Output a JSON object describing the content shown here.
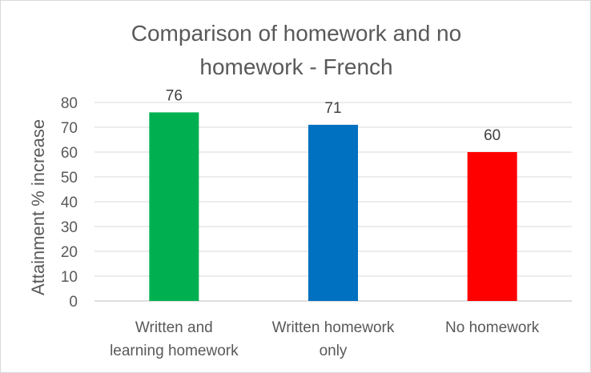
{
  "chart_data": {
    "type": "bar",
    "title": [
      "Comparison of homework and no",
      "homework - French"
    ],
    "xlabel": "",
    "ylabel": "Attainment % increase",
    "categories": [
      [
        "Written and",
        "learning homework"
      ],
      [
        "Written homework",
        "only"
      ],
      [
        "No homework"
      ]
    ],
    "values": [
      76,
      71,
      60
    ],
    "colors": [
      "#00b050",
      "#0070c0",
      "#ff0000"
    ],
    "ylim": [
      0,
      80
    ],
    "yticks": [
      0,
      10,
      20,
      30,
      40,
      50,
      60,
      70,
      80
    ],
    "grid": true,
    "data_labels": true
  }
}
